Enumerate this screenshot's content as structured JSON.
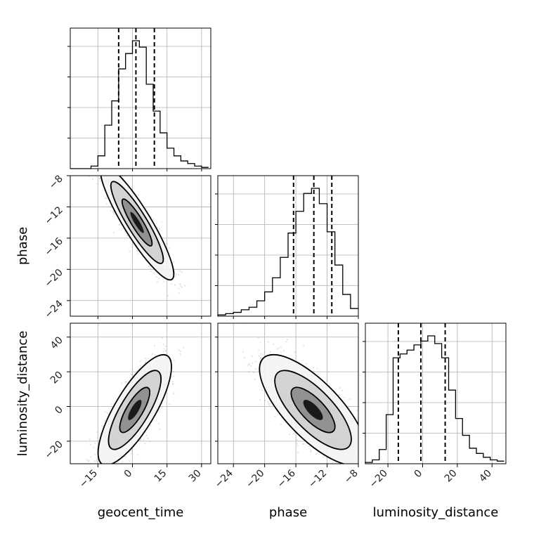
{
  "chart_data": {
    "type": "corner",
    "parameters": [
      "geocent_time",
      "phase",
      "luminosity_distance"
    ],
    "axis_labels": {
      "geocent_time": "geocent_time",
      "phase": "phase",
      "luminosity_distance": "luminosity_distance"
    },
    "ranges": {
      "geocent_time": [
        -27,
        34
      ],
      "phase": [
        -26,
        -8
      ],
      "luminosity_distance": [
        -33,
        48
      ]
    },
    "ticks": {
      "geocent_time": [
        -15,
        0,
        15,
        30
      ],
      "phase": [
        -24,
        -20,
        -16,
        -12,
        -8
      ],
      "luminosity_distance": [
        -20,
        0,
        20,
        40
      ]
    },
    "tick_labels": {
      "geocent_time": [
        "−15",
        "0",
        "15",
        "30"
      ],
      "phase": [
        "−24",
        "−20",
        "−16",
        "−12",
        "−8"
      ],
      "luminosity_distance": [
        "−20",
        "0",
        "20",
        "40"
      ]
    },
    "quantiles": {
      "geocent_time": [
        -6,
        1.5,
        9.5
      ],
      "phase": [
        -16.3,
        -13.7,
        -11.4
      ],
      "luminosity_distance": [
        -14,
        -1,
        13
      ]
    },
    "histograms": {
      "geocent_time": {
        "bin_edges": [
          -27,
          -24,
          -21,
          -18,
          -15,
          -12,
          -9,
          -6,
          -3,
          0,
          3,
          6,
          9,
          12,
          15,
          18,
          21,
          24,
          27,
          30,
          33
        ],
        "heights": [
          0,
          0,
          0,
          0.02,
          0.1,
          0.34,
          0.53,
          0.78,
          0.9,
          1.0,
          0.95,
          0.66,
          0.45,
          0.28,
          0.16,
          0.1,
          0.06,
          0.04,
          0.02,
          0.01
        ]
      },
      "phase": {
        "bin_edges": [
          -26,
          -25,
          -24,
          -23,
          -22,
          -21,
          -20,
          -19,
          -18,
          -17,
          -16,
          -15,
          -14,
          -13,
          -12,
          -11,
          -10,
          -9,
          -8
        ],
        "heights": [
          0.01,
          0.02,
          0.03,
          0.05,
          0.07,
          0.12,
          0.19,
          0.3,
          0.46,
          0.65,
          0.82,
          0.96,
          1.0,
          0.88,
          0.66,
          0.4,
          0.17,
          0.06
        ]
      },
      "luminosity_distance": {
        "bin_edges": [
          -33,
          -29,
          -25,
          -21,
          -17,
          -13,
          -9,
          -5,
          -1,
          3,
          7,
          11,
          15,
          19,
          23,
          27,
          31,
          35,
          39,
          43,
          47
        ],
        "heights": [
          0.01,
          0.03,
          0.11,
          0.38,
          0.82,
          0.85,
          0.88,
          0.92,
          0.95,
          0.99,
          0.93,
          0.82,
          0.57,
          0.35,
          0.22,
          0.12,
          0.08,
          0.05,
          0.03,
          0.02
        ]
      }
    },
    "joint": [
      {
        "x": "geocent_time",
        "y": "phase",
        "mean": [
          2,
          -14
        ],
        "sd": [
          6.5,
          3.0
        ],
        "rho": -0.9
      },
      {
        "x": "geocent_time",
        "y": "luminosity_distance",
        "mean": [
          1,
          -2
        ],
        "sd": [
          6.5,
          13
        ],
        "rho": 0.78
      },
      {
        "x": "phase",
        "y": "luminosity_distance",
        "mean": [
          -13.8,
          -2
        ],
        "sd": [
          2.8,
          13
        ],
        "rho": -0.74
      }
    ]
  }
}
